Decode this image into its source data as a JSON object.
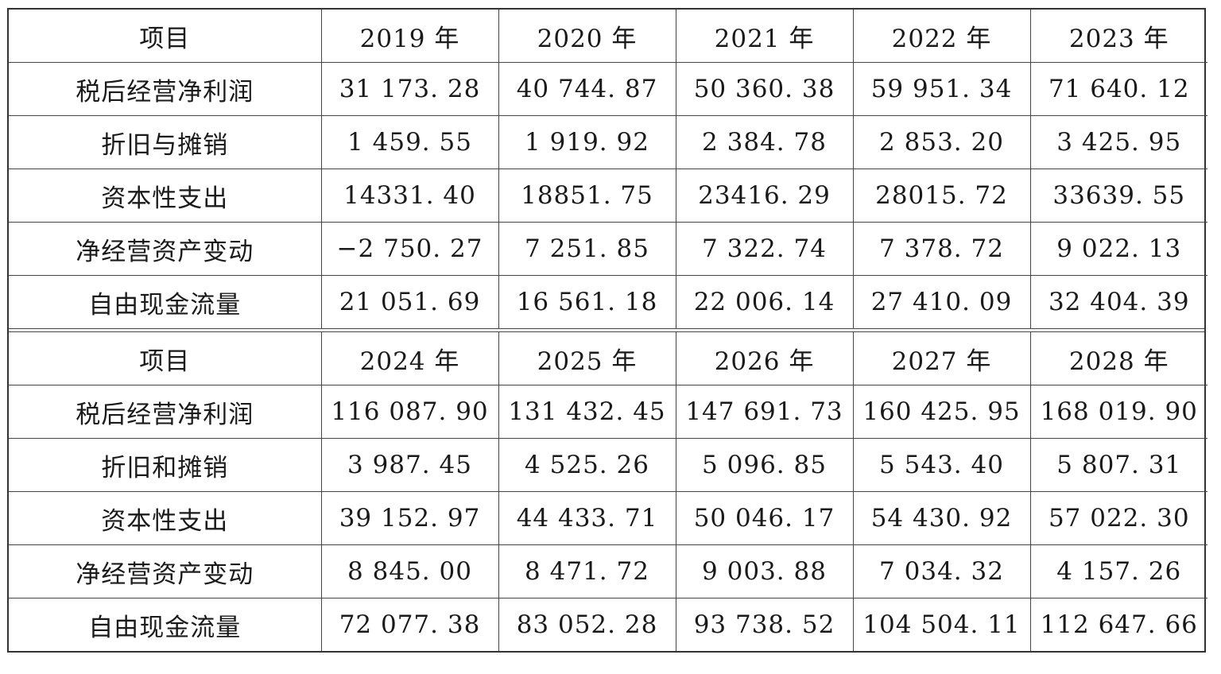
{
  "blocks": [
    {
      "header": [
        "项目",
        "2019 年",
        "2020 年",
        "2021 年",
        "2022 年",
        "2023 年"
      ],
      "rows": [
        [
          "税后经营净利润",
          "31 173. 28",
          "40 744. 87",
          "50 360. 38",
          "59 951. 34",
          "71 640. 12"
        ],
        [
          "折旧与摊销",
          "1 459. 55",
          "1 919. 92",
          "2 384. 78",
          "2 853. 20",
          "3 425. 95"
        ],
        [
          "资本性支出",
          "14331. 40",
          "18851. 75",
          "23416. 29",
          "28015. 72",
          "33639. 55"
        ],
        [
          "净经营资产变动",
          "−2 750. 27",
          "7 251. 85",
          "7 322. 74",
          "7 378. 72",
          "9 022. 13"
        ],
        [
          "自由现金流量",
          "21 051. 69",
          "16 561. 18",
          "22 006. 14",
          "27 410. 09",
          "32 404. 39"
        ]
      ]
    },
    {
      "header": [
        "项目",
        "2024 年",
        "2025 年",
        "2026 年",
        "2027 年",
        "2028 年"
      ],
      "rows": [
        [
          "税后经营净利润",
          "116 087. 90",
          "131 432. 45",
          "147 691. 73",
          "160 425. 95",
          "168 019. 90"
        ],
        [
          "折旧和摊销",
          "3 987. 45",
          "4 525. 26",
          "5 096. 85",
          "5 543. 40",
          "5 807. 31"
        ],
        [
          "资本性支出",
          "39 152. 97",
          "44 433. 71",
          "50 046. 17",
          "54 430. 92",
          "57 022. 30"
        ],
        [
          "净经营资产变动",
          "8 845. 00",
          "8 471. 72",
          "9 003. 88",
          "7 034. 32",
          "4 157. 26"
        ],
        [
          "自由现金流量",
          "72 077. 38",
          "83 052. 28",
          "93 738. 52",
          "104 504. 11",
          "112 647. 66"
        ]
      ]
    }
  ]
}
